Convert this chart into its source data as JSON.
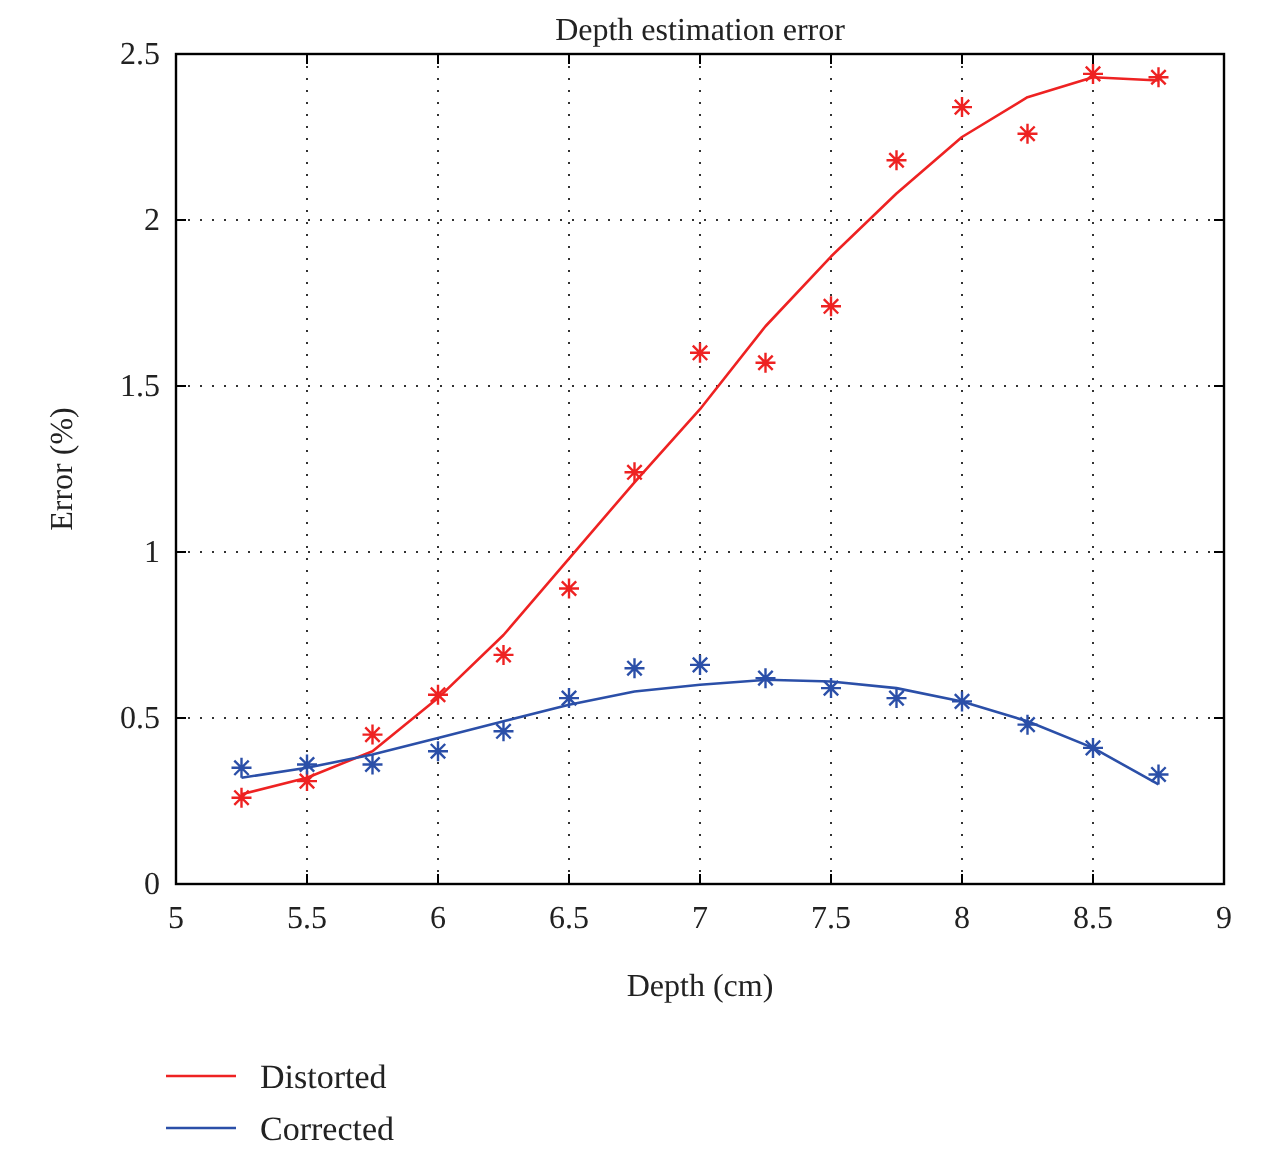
{
  "chart_data": {
    "type": "line",
    "title": "Depth estimation error",
    "xlabel": "Depth (cm)",
    "ylabel": "Error (%)",
    "x": [
      5.25,
      5.5,
      5.75,
      6,
      6.25,
      6.5,
      6.75,
      7,
      7.25,
      7.5,
      7.75,
      8,
      8.25,
      8.5,
      8.75
    ],
    "series": [
      {
        "name": "Distorted",
        "color": "#ee2222",
        "marker": "none",
        "values": [
          0.27,
          0.32,
          0.4,
          0.56,
          0.75,
          0.98,
          1.21,
          1.43,
          1.68,
          1.89,
          2.08,
          2.25,
          2.37,
          2.43,
          2.42
        ]
      },
      {
        "name": "Corrected",
        "color": "#2b4fa8",
        "marker": "none",
        "values": [
          0.32,
          0.35,
          0.39,
          0.44,
          0.49,
          0.54,
          0.58,
          0.6,
          0.615,
          0.61,
          0.59,
          0.55,
          0.49,
          0.41,
          0.3
        ]
      },
      {
        "color": "#ee2222",
        "type": "scatter",
        "marker": "cross",
        "values": [
          0.26,
          0.31,
          0.45,
          0.57,
          0.69,
          0.89,
          1.24,
          1.6,
          1.57,
          1.74,
          2.18,
          2.34,
          2.26,
          2.44,
          2.43
        ]
      },
      {
        "color": "#2b4fa8",
        "type": "scatter",
        "marker": "cross",
        "values": [
          0.35,
          0.36,
          0.36,
          0.4,
          0.46,
          0.56,
          0.65,
          0.66,
          0.62,
          0.59,
          0.56,
          0.55,
          0.48,
          0.41,
          0.33
        ]
      }
    ],
    "xlim": [
      5,
      9
    ],
    "xticks": [
      5,
      5.5,
      6,
      6.5,
      7,
      7.5,
      8,
      8.5,
      9
    ],
    "ylim": [
      0,
      2.5
    ],
    "yticks": [
      0,
      0.5,
      1,
      1.5,
      2,
      2.5
    ],
    "grid": true,
    "legend": "bottom left",
    "line_style": "solid"
  }
}
